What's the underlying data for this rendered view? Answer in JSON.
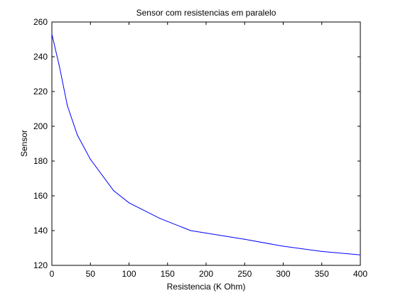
{
  "chart_data": {
    "type": "line",
    "title": "Sensor com resistencias em paralelo",
    "xlabel": "Resistencia (K Ohm)",
    "ylabel": "Sensor",
    "xlim": [
      0,
      400
    ],
    "ylim": [
      120,
      260
    ],
    "xticks": [
      0,
      50,
      100,
      150,
      200,
      250,
      300,
      350,
      400
    ],
    "yticks": [
      120,
      140,
      160,
      180,
      200,
      220,
      240,
      260
    ],
    "grid": false,
    "legend": "none",
    "series": [
      {
        "color": "#0000ff",
        "x": [
          0,
          10,
          20,
          33,
          50,
          80,
          100,
          140,
          180,
          250,
          300,
          350,
          400
        ],
        "y": [
          253,
          234,
          212,
          195,
          181,
          163,
          156,
          147,
          140,
          135,
          131,
          128,
          126
        ]
      }
    ]
  }
}
